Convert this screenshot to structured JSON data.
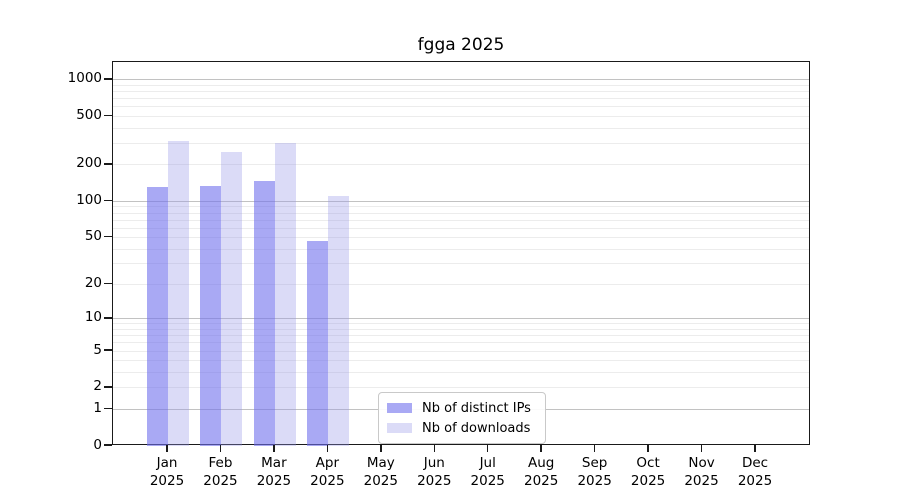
{
  "chart_data": {
    "type": "bar",
    "title": "fgga 2025",
    "categories": [
      "Jan",
      "Feb",
      "Mar",
      "Apr",
      "May",
      "Jun",
      "Jul",
      "Aug",
      "Sep",
      "Oct",
      "Nov",
      "Dec"
    ],
    "year": "2025",
    "series": [
      {
        "name": "Nb of distinct IPs",
        "fill": "rgba(112,112,237,0.6)",
        "legend_fill": "#a9a9f4",
        "values": [
          132,
          135,
          146,
          47,
          0,
          0,
          0,
          0,
          0,
          0,
          0,
          0
        ]
      },
      {
        "name": "Nb of downloads",
        "fill": "rgba(152,152,232,0.35)",
        "legend_fill": "#dbdbf7",
        "values": [
          316,
          257,
          305,
          110,
          0,
          0,
          0,
          0,
          0,
          0,
          0,
          0
        ]
      }
    ],
    "y_ticks": [
      0,
      1,
      2,
      5,
      10,
      20,
      50,
      100,
      200,
      500,
      1000
    ],
    "scale": "log1p",
    "ylim": [
      0,
      1400
    ],
    "xlabel": "",
    "ylabel": "",
    "grid": {
      "major_color": "#c2c2c2",
      "minor_color": "#ececec"
    },
    "legend_position": "lower center"
  }
}
